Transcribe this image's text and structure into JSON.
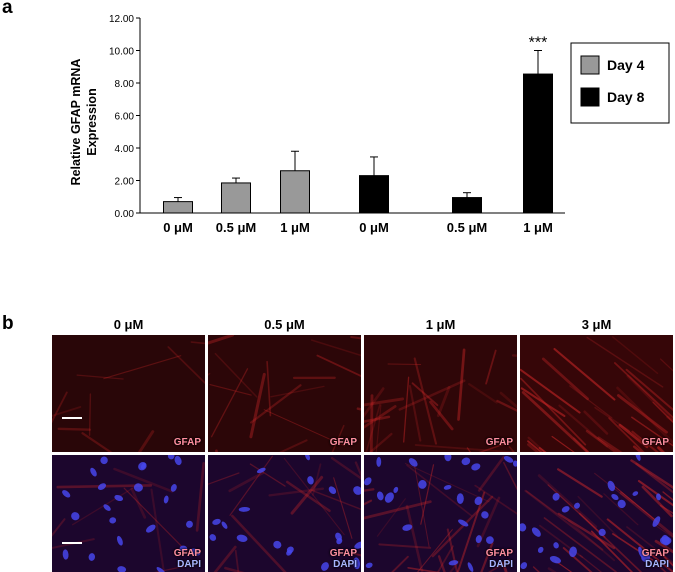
{
  "panel_a_label": "a",
  "panel_b_label": "b",
  "chart_data": {
    "type": "bar",
    "ylabel": "Relative GFAP mRNA Expression",
    "ylim": [
      0,
      12
    ],
    "yticks": [
      "0.00",
      "2.00",
      "4.00",
      "6.00",
      "8.00",
      "10.00",
      "12.00"
    ],
    "categories": [
      "0 μM",
      "0.5 μM",
      "1 μM",
      "0 μM",
      "0.5 μM",
      "1 μM"
    ],
    "groups": [
      "Day 4",
      "Day 4",
      "Day 4",
      "Day 8",
      "Day 8",
      "Day 8"
    ],
    "values": [
      0.7,
      1.85,
      2.6,
      2.3,
      0.95,
      8.55
    ],
    "errors": [
      0.25,
      0.3,
      1.2,
      1.15,
      0.3,
      1.45
    ],
    "annotation": {
      "index": 5,
      "text": "***"
    },
    "legend": [
      {
        "name": "Day 4",
        "color": "#999999"
      },
      {
        "name": "Day 8",
        "color": "#000000"
      }
    ],
    "legend_position": "right"
  },
  "microscopy": {
    "columns": [
      "0 μM",
      "0.5 μM",
      "1 μM",
      "3 μM"
    ],
    "stain_top": "GFAP",
    "stain_bottom_1": "GFAP",
    "stain_bottom_2": "DAPI"
  }
}
